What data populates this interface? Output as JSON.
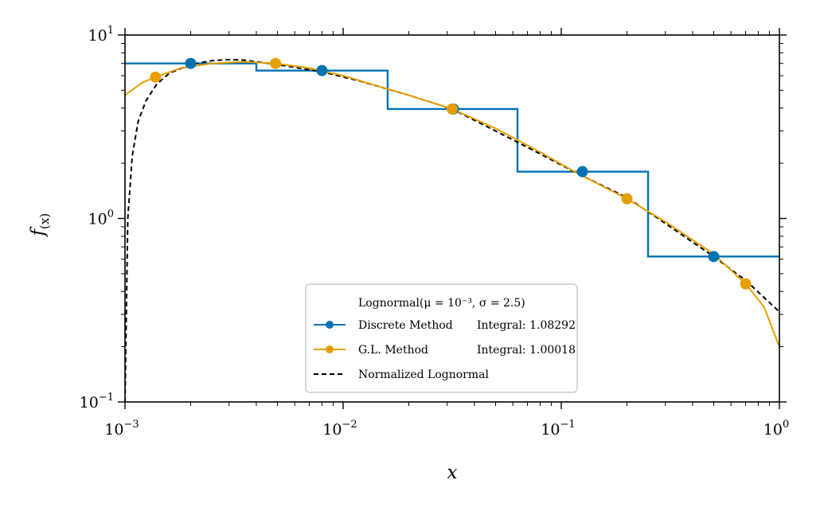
{
  "chart_data": {
    "type": "line",
    "xscale": "log",
    "yscale": "log",
    "xlim": [
      0.001,
      1
    ],
    "ylim": [
      0.1,
      10
    ],
    "xlabel": "x",
    "ylabel": "f(x)",
    "ylabel_main": "f",
    "ylabel_sub": "(x)",
    "x_ticks": [
      {
        "base": "10",
        "exp": "−3",
        "value": 0.001
      },
      {
        "base": "10",
        "exp": "−2",
        "value": 0.01
      },
      {
        "base": "10",
        "exp": "−1",
        "value": 0.1
      },
      {
        "base": "10",
        "exp": "0",
        "value": 1
      }
    ],
    "y_ticks": [
      {
        "base": "10",
        "exp": "−1",
        "value": 0.1
      },
      {
        "base": "10",
        "exp": "0",
        "value": 1
      },
      {
        "base": "10",
        "exp": "1",
        "value": 10
      }
    ],
    "legend": {
      "title": "Lognormal(μ = 10⁻³, σ = 2.5)",
      "location": "lower center",
      "entries": [
        {
          "series": "discrete",
          "label": "Discrete Method",
          "integral": "Integral: 1.08292"
        },
        {
          "series": "gl",
          "label": "G.L. Method",
          "integral": "Integral: 1.00018"
        },
        {
          "series": "normalized",
          "label": "Normalized Lognormal",
          "integral": ""
        }
      ]
    },
    "series": [
      {
        "id": "discrete",
        "name": "Discrete Method",
        "color": "#0072B2",
        "style": "step",
        "bin_edges": [
          0.001,
          0.004,
          0.016,
          0.063,
          0.25,
          1.0
        ],
        "bin_values": [
          7.0,
          6.4,
          3.95,
          1.8,
          0.62
        ],
        "points": [
          [
            0.002,
            7.0
          ],
          [
            0.008,
            6.4
          ],
          [
            0.032,
            3.95
          ],
          [
            0.125,
            1.8
          ],
          [
            0.5,
            0.62
          ]
        ]
      },
      {
        "id": "gl",
        "name": "G.L. Method",
        "color": "#E69F00",
        "style": "line-markers",
        "curve": [
          [
            0.001,
            4.7
          ],
          [
            0.0012,
            5.5
          ],
          [
            0.00138,
            5.9
          ],
          [
            0.0018,
            6.6
          ],
          [
            0.0025,
            7.0
          ],
          [
            0.0035,
            7.15
          ],
          [
            0.0049,
            7.0
          ],
          [
            0.007,
            6.6
          ],
          [
            0.01,
            6.0
          ],
          [
            0.015,
            5.2
          ],
          [
            0.02,
            4.7
          ],
          [
            0.0316,
            3.95
          ],
          [
            0.05,
            3.1
          ],
          [
            0.08,
            2.3
          ],
          [
            0.12,
            1.75
          ],
          [
            0.2,
            1.28
          ],
          [
            0.3,
            0.96
          ],
          [
            0.5,
            0.64
          ],
          [
            0.7,
            0.44
          ],
          [
            0.85,
            0.33
          ],
          [
            1.0,
            0.2
          ]
        ],
        "points": [
          [
            0.00138,
            5.9
          ],
          [
            0.0049,
            7.0
          ],
          [
            0.0316,
            3.95
          ],
          [
            0.2,
            1.28
          ],
          [
            0.7,
            0.44
          ]
        ]
      },
      {
        "id": "normalized",
        "name": "Normalized Lognormal",
        "color": "#000000",
        "style": "dashed",
        "curve": [
          [
            0.001,
            0.1
          ],
          [
            0.00103,
            1.0
          ],
          [
            0.00108,
            2.2
          ],
          [
            0.00115,
            3.4
          ],
          [
            0.00125,
            4.4
          ],
          [
            0.0014,
            5.4
          ],
          [
            0.0016,
            6.2
          ],
          [
            0.002,
            6.9
          ],
          [
            0.0025,
            7.25
          ],
          [
            0.003,
            7.35
          ],
          [
            0.0035,
            7.3
          ],
          [
            0.005,
            6.9
          ],
          [
            0.008,
            6.3
          ],
          [
            0.012,
            5.6
          ],
          [
            0.02,
            4.7
          ],
          [
            0.0316,
            3.95
          ],
          [
            0.05,
            3.0
          ],
          [
            0.08,
            2.25
          ],
          [
            0.12,
            1.75
          ],
          [
            0.2,
            1.3
          ],
          [
            0.3,
            0.94
          ],
          [
            0.5,
            0.62
          ],
          [
            0.7,
            0.46
          ],
          [
            1.0,
            0.31
          ]
        ]
      }
    ]
  }
}
